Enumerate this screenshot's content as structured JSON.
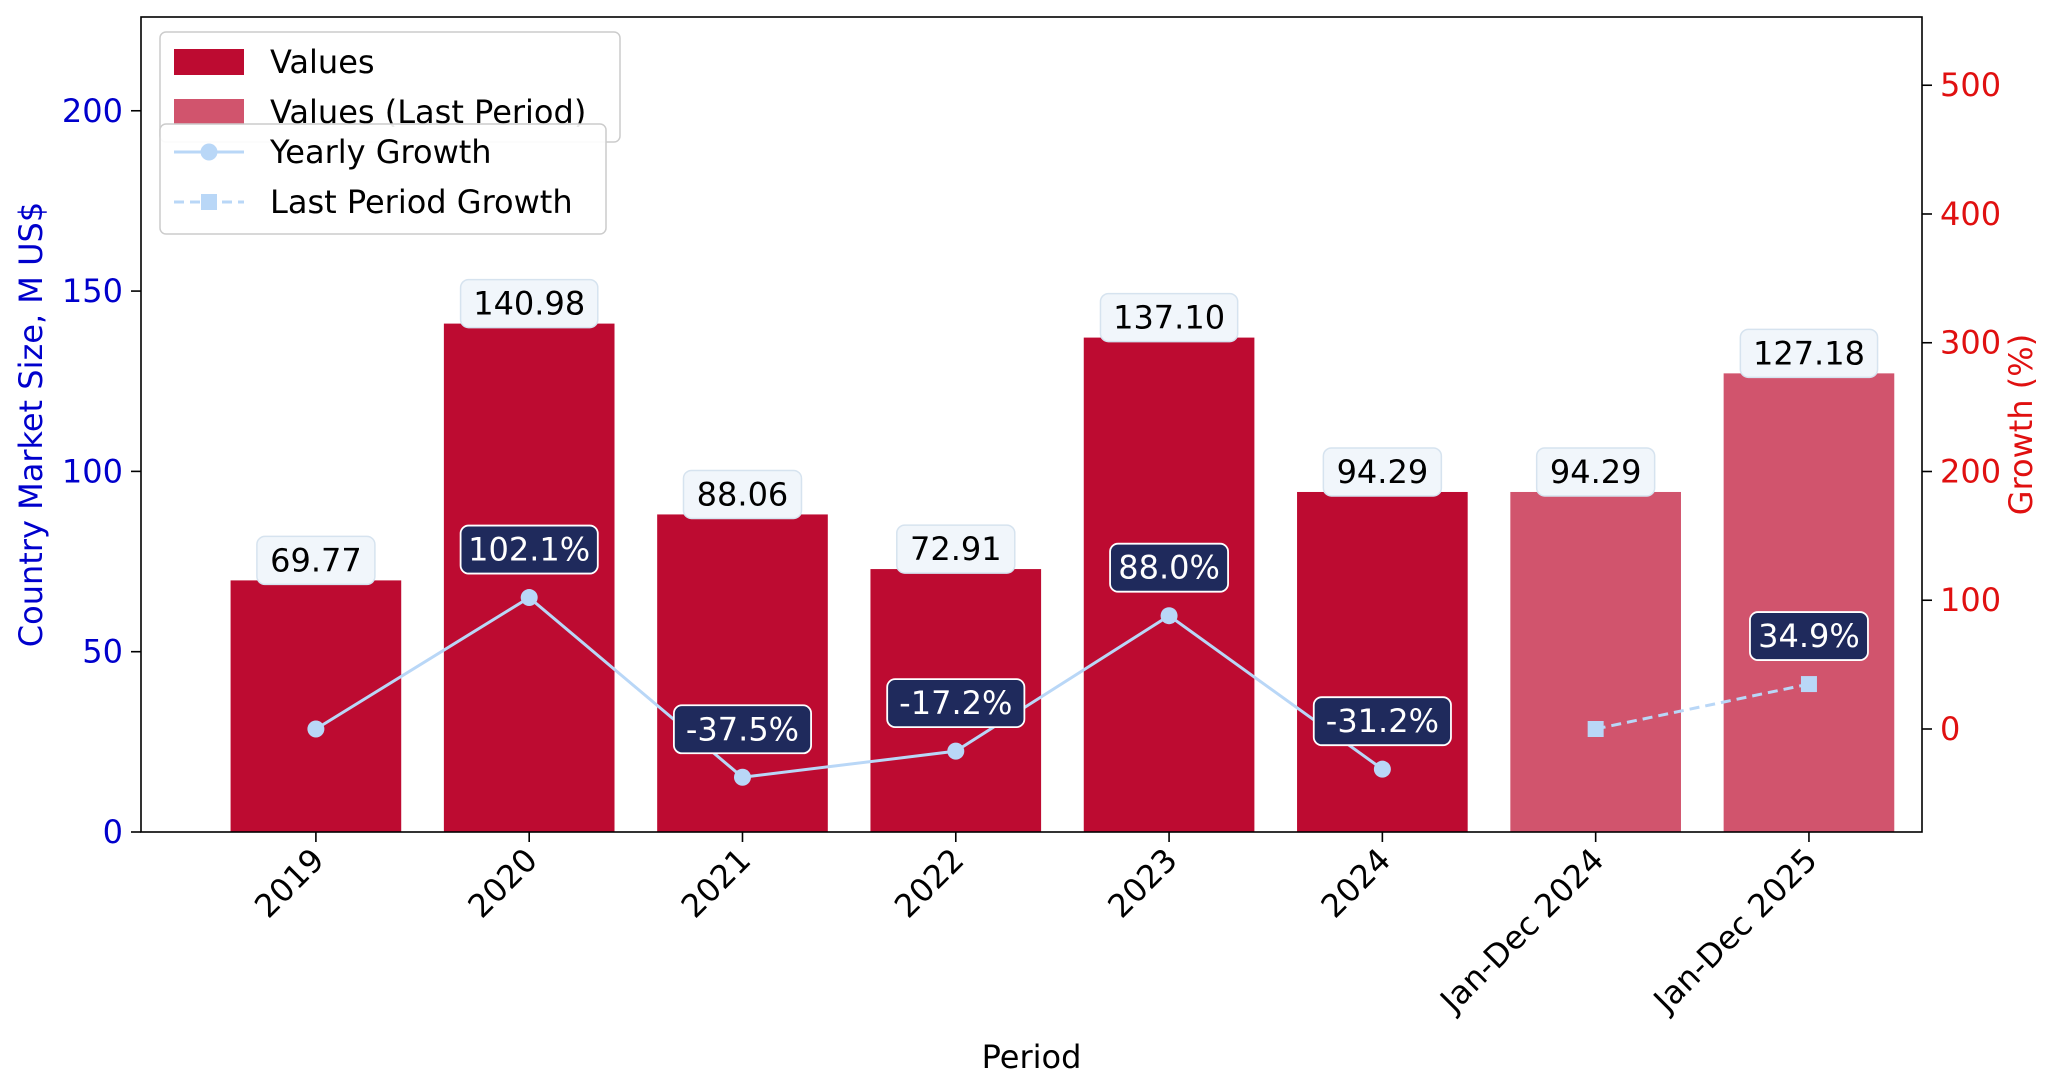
{
  "chart_data": {
    "type": "bar",
    "categories": [
      "2019",
      "2020",
      "2021",
      "2022",
      "2023",
      "2024",
      "Jan-Dec 2024",
      "Jan-Dec 2025"
    ],
    "values": [
      69.77,
      140.98,
      88.06,
      72.91,
      137.1,
      94.29,
      94.29,
      127.18
    ],
    "value_labels": [
      "69.77",
      "140.98",
      "88.06",
      "72.91",
      "137.10",
      "94.29",
      "94.29",
      "127.18"
    ],
    "bar_series": [
      {
        "name": "Values",
        "categories": [
          "2019",
          "2020",
          "2021",
          "2022",
          "2023",
          "2024"
        ],
        "color": "#BD0B31"
      },
      {
        "name": "Values (Last Period)",
        "categories": [
          "Jan-Dec 2024",
          "Jan-Dec 2025"
        ],
        "color": "#D1546D"
      }
    ],
    "line_series": [
      {
        "name": "Yearly Growth",
        "style": "solid",
        "marker": "circle",
        "color": "#B9D7F7",
        "categories": [
          "2019",
          "2020",
          "2021",
          "2022",
          "2023",
          "2024"
        ],
        "values": [
          0,
          102.1,
          -37.5,
          -17.2,
          88.0,
          -31.2
        ],
        "labels": [
          "",
          "102.1%",
          "-37.5%",
          "-17.2%",
          "88.0%",
          "-31.2%"
        ]
      },
      {
        "name": "Last Period Growth",
        "style": "dashed",
        "marker": "square",
        "color": "#B9D7F7",
        "categories": [
          "Jan-Dec 2024",
          "Jan-Dec 2025"
        ],
        "values": [
          0,
          34.9
        ],
        "labels": [
          "",
          "34.9%"
        ]
      }
    ],
    "xlabel": "Period",
    "ylabel": "Country Market Size, M US$",
    "y2label": "Growth (%)",
    "ylim": [
      0,
      226
    ],
    "y2lim": [
      -80,
      553
    ],
    "yticks": [
      0,
      50,
      100,
      150,
      200
    ],
    "y2ticks": [
      0,
      100,
      200,
      300,
      400,
      500
    ],
    "legend_position": "top-left",
    "grid": false,
    "colors": {
      "left_axis": "#0000CC",
      "right_axis": "#E01010",
      "growth_label_bg": "#1F2A5C",
      "value_label_bg": "#F1F6FB"
    }
  }
}
